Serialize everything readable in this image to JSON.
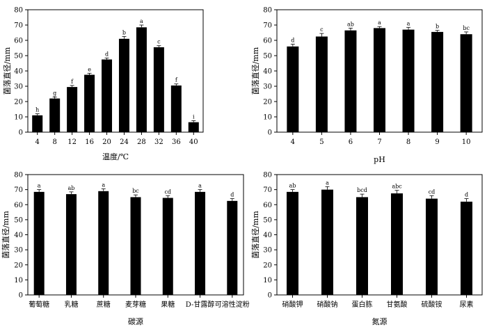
{
  "figure": {
    "colors": {
      "bar": "#000000",
      "axis": "#000000",
      "background": "#ffffff"
    }
  },
  "chart_data": [
    {
      "type": "bar",
      "id": "temperature",
      "xlabel": "温度/℃",
      "ylabel": "菌落直径/mm",
      "ylim": [
        0,
        80
      ],
      "yticks": [
        0,
        10,
        20,
        30,
        40,
        50,
        60,
        70,
        80
      ],
      "categories": [
        "4",
        "8",
        "12",
        "16",
        "20",
        "24",
        "28",
        "32",
        "36",
        "40"
      ],
      "values": [
        11,
        22,
        29.5,
        37.5,
        47.5,
        61,
        68.5,
        55.5,
        30.5,
        6.5
      ],
      "errors": [
        1,
        1,
        1,
        1,
        1,
        1.5,
        1.5,
        1,
        1,
        1
      ],
      "letters": [
        "h",
        "g",
        "f",
        "e",
        "d",
        "b",
        "a",
        "c",
        "f",
        "i"
      ]
    },
    {
      "type": "bar",
      "id": "ph",
      "xlabel": "pH",
      "ylabel": "菌落直径/mm",
      "ylim": [
        0,
        80
      ],
      "yticks": [
        0,
        10,
        20,
        30,
        40,
        50,
        60,
        70,
        80
      ],
      "categories": [
        "4",
        "5",
        "6",
        "7",
        "8",
        "9",
        "10"
      ],
      "values": [
        56,
        62.5,
        66.5,
        68,
        67,
        65.5,
        64
      ],
      "errors": [
        1.5,
        2,
        1.5,
        1,
        1.5,
        1,
        1.5
      ],
      "letters": [
        "d",
        "c",
        "ab",
        "a",
        "a",
        "b",
        "bc"
      ]
    },
    {
      "type": "bar",
      "id": "carbon",
      "xlabel": "碳源",
      "ylabel": "菌落直径/mm",
      "ylim": [
        0,
        80
      ],
      "yticks": [
        0,
        10,
        20,
        30,
        40,
        50,
        60,
        70,
        80
      ],
      "categories": [
        "葡萄糖",
        "乳糖",
        "蔗糖",
        "麦芽糖",
        "果糖",
        "D-甘露醇",
        "可溶性淀粉"
      ],
      "values": [
        68.5,
        67,
        69,
        65,
        64.5,
        68.5,
        62.5
      ],
      "errors": [
        1.5,
        1.5,
        1.5,
        1.5,
        1.5,
        1.5,
        1.5
      ],
      "letters": [
        "a",
        "ab",
        "a",
        "bc",
        "cd",
        "a",
        "d"
      ]
    },
    {
      "type": "bar",
      "id": "nitrogen",
      "xlabel": "氮源",
      "ylabel": "菌落直径/mm",
      "ylim": [
        0,
        80
      ],
      "yticks": [
        0,
        10,
        20,
        30,
        40,
        50,
        60,
        70,
        80
      ],
      "categories": [
        "硝酸钾",
        "硝酸钠",
        "蛋白胨",
        "甘氨酸",
        "硫酸铵",
        "尿素"
      ],
      "values": [
        68.5,
        70,
        65,
        67.5,
        64,
        62
      ],
      "errors": [
        1.5,
        2,
        2,
        2,
        2,
        2
      ],
      "letters": [
        "ab",
        "a",
        "bcd",
        "abc",
        "cd",
        "d"
      ]
    }
  ]
}
